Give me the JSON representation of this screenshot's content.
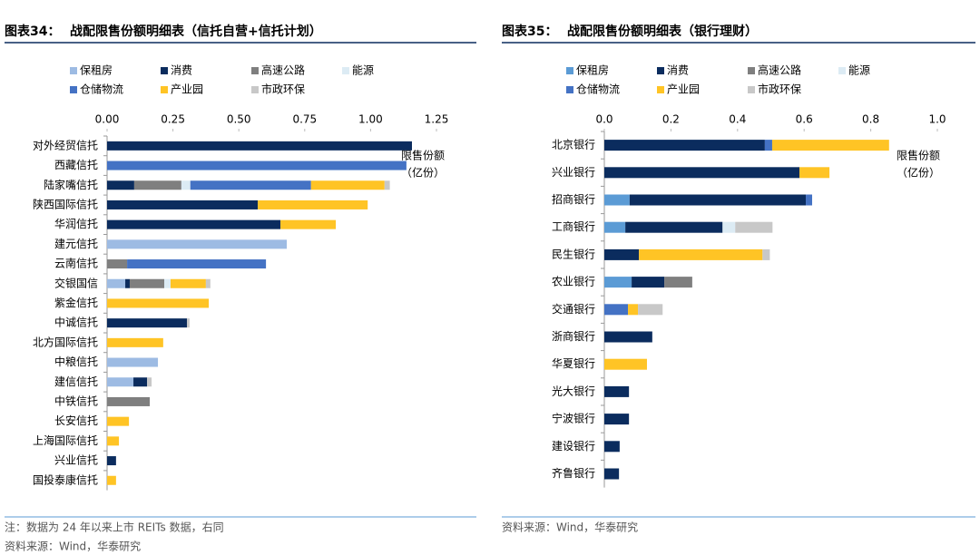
{
  "chart_data": [
    {
      "type": "bar",
      "orientation": "horizontal",
      "label": "图表34：",
      "title": "战配限售份额明细表（信托自营+信托计划）",
      "categories": [
        "对外经贸信托",
        "西藏信托",
        "陆家嘴信托",
        "陕西国际信托",
        "华润信托",
        "建元信托",
        "云南信托",
        "交银国信",
        "紫金信托",
        "中诚信托",
        "北方国际信托",
        "中粮信托",
        "建信信托",
        "中铁信托",
        "长安信托",
        "上海国际信托",
        "兴业信托",
        "国投泰康信托"
      ],
      "series": [
        {
          "name": "保租房",
          "color": "#9dbbe3",
          "values": [
            null,
            null,
            null,
            null,
            null,
            0.682,
            null,
            0.069,
            null,
            null,
            null,
            0.193,
            0.1,
            null,
            null,
            null,
            null,
            null
          ]
        },
        {
          "name": "消费",
          "color": "#0b2c5e",
          "values": [
            1.157,
            null,
            0.103,
            0.572,
            0.658,
            null,
            null,
            0.017,
            null,
            0.303,
            null,
            null,
            0.052,
            null,
            null,
            null,
            0.034,
            null
          ]
        },
        {
          "name": "高速公路",
          "color": "#7f7f7f",
          "values": [
            null,
            null,
            0.179,
            null,
            null,
            null,
            0.076,
            0.131,
            null,
            null,
            null,
            null,
            null,
            0.162,
            null,
            null,
            null,
            null
          ]
        },
        {
          "name": "能源",
          "color": "#dcebf4",
          "values": [
            null,
            null,
            0.034,
            null,
            null,
            null,
            null,
            0.024,
            null,
            null,
            null,
            null,
            null,
            null,
            null,
            null,
            null,
            null
          ]
        },
        {
          "name": "仓储物流",
          "color": "#4472c4",
          "values": [
            null,
            1.136,
            0.458,
            null,
            null,
            null,
            0.527,
            null,
            null,
            null,
            null,
            null,
            null,
            null,
            null,
            null,
            null,
            null
          ]
        },
        {
          "name": "产业园",
          "color": "#ffc425",
          "values": [
            null,
            null,
            0.279,
            0.417,
            0.21,
            null,
            null,
            0.134,
            0.386,
            null,
            0.213,
            null,
            null,
            null,
            0.083,
            0.045,
            null,
            0.034
          ]
        },
        {
          "name": "市政环保",
          "color": "#c8c8c8",
          "values": [
            null,
            null,
            0.02,
            null,
            null,
            null,
            null,
            0.017,
            null,
            0.01,
            null,
            null,
            0.017,
            null,
            null,
            null,
            null,
            null
          ]
        }
      ],
      "xlim": [
        0,
        1.25
      ],
      "xticks": [
        {
          "value": 0,
          "label": "0.00"
        },
        0.25,
        {
          "value": 0.5,
          "label": "0.50"
        },
        0.75,
        {
          "value": 1,
          "label": "1.00"
        },
        1.25
      ],
      "annotation": [
        "限售份额",
        "（亿份）"
      ],
      "notes": [
        "注：数据为 24 年以来上市 REITs 数据，右同",
        "资料来源：Wind，华泰研究"
      ]
    },
    {
      "type": "bar",
      "orientation": "horizontal",
      "label": "图表35：",
      "title": "战配限售份额明细表（银行理财）",
      "categories": [
        "北京银行",
        "兴业银行",
        "招商银行",
        "工商银行",
        "民生银行",
        "农业银行",
        "交通银行",
        "浙商银行",
        "华夏银行",
        "光大银行",
        "宁波银行",
        "建设银行",
        "齐鲁银行"
      ],
      "series": [
        {
          "name": "保租房",
          "color": "#5b9bd5",
          "values": [
            null,
            null,
            0.076,
            0.063,
            null,
            0.082,
            null,
            null,
            null,
            null,
            null,
            null,
            null
          ]
        },
        {
          "name": "消费",
          "color": "#0b2c5e",
          "values": [
            0.482,
            0.586,
            0.529,
            0.292,
            0.104,
            0.098,
            null,
            0.144,
            null,
            0.074,
            0.074,
            0.046,
            0.044
          ]
        },
        {
          "name": "高速公路",
          "color": "#7f7f7f",
          "values": [
            null,
            null,
            null,
            null,
            null,
            0.084,
            null,
            null,
            null,
            null,
            null,
            null,
            null
          ]
        },
        {
          "name": "能源",
          "color": "#dcebf4",
          "values": [
            null,
            null,
            null,
            0.038,
            null,
            null,
            null,
            null,
            null,
            null,
            null,
            null,
            null
          ]
        },
        {
          "name": "仓储物流",
          "color": "#4472c4",
          "values": [
            0.022,
            null,
            0.019,
            null,
            null,
            null,
            0.071,
            null,
            null,
            null,
            null,
            null,
            null
          ]
        },
        {
          "name": "产业园",
          "color": "#ffc425",
          "values": [
            0.351,
            0.09,
            null,
            null,
            0.371,
            null,
            0.03,
            null,
            0.128,
            null,
            null,
            null,
            null
          ]
        },
        {
          "name": "市政环保",
          "color": "#c8c8c8",
          "values": [
            null,
            null,
            null,
            0.112,
            0.022,
            null,
            0.074,
            null,
            null,
            null,
            null,
            null,
            null
          ]
        }
      ],
      "xlim": [
        0,
        1
      ],
      "xticks": [
        {
          "value": 0,
          "label": "0.0"
        },
        0.2,
        0.4,
        0.6,
        0.8,
        {
          "value": 1,
          "label": "1.0"
        }
      ],
      "annotation": [
        "限售份额",
        "（亿份）"
      ],
      "notes": [
        "资料来源：Wind，华泰研究"
      ]
    }
  ]
}
